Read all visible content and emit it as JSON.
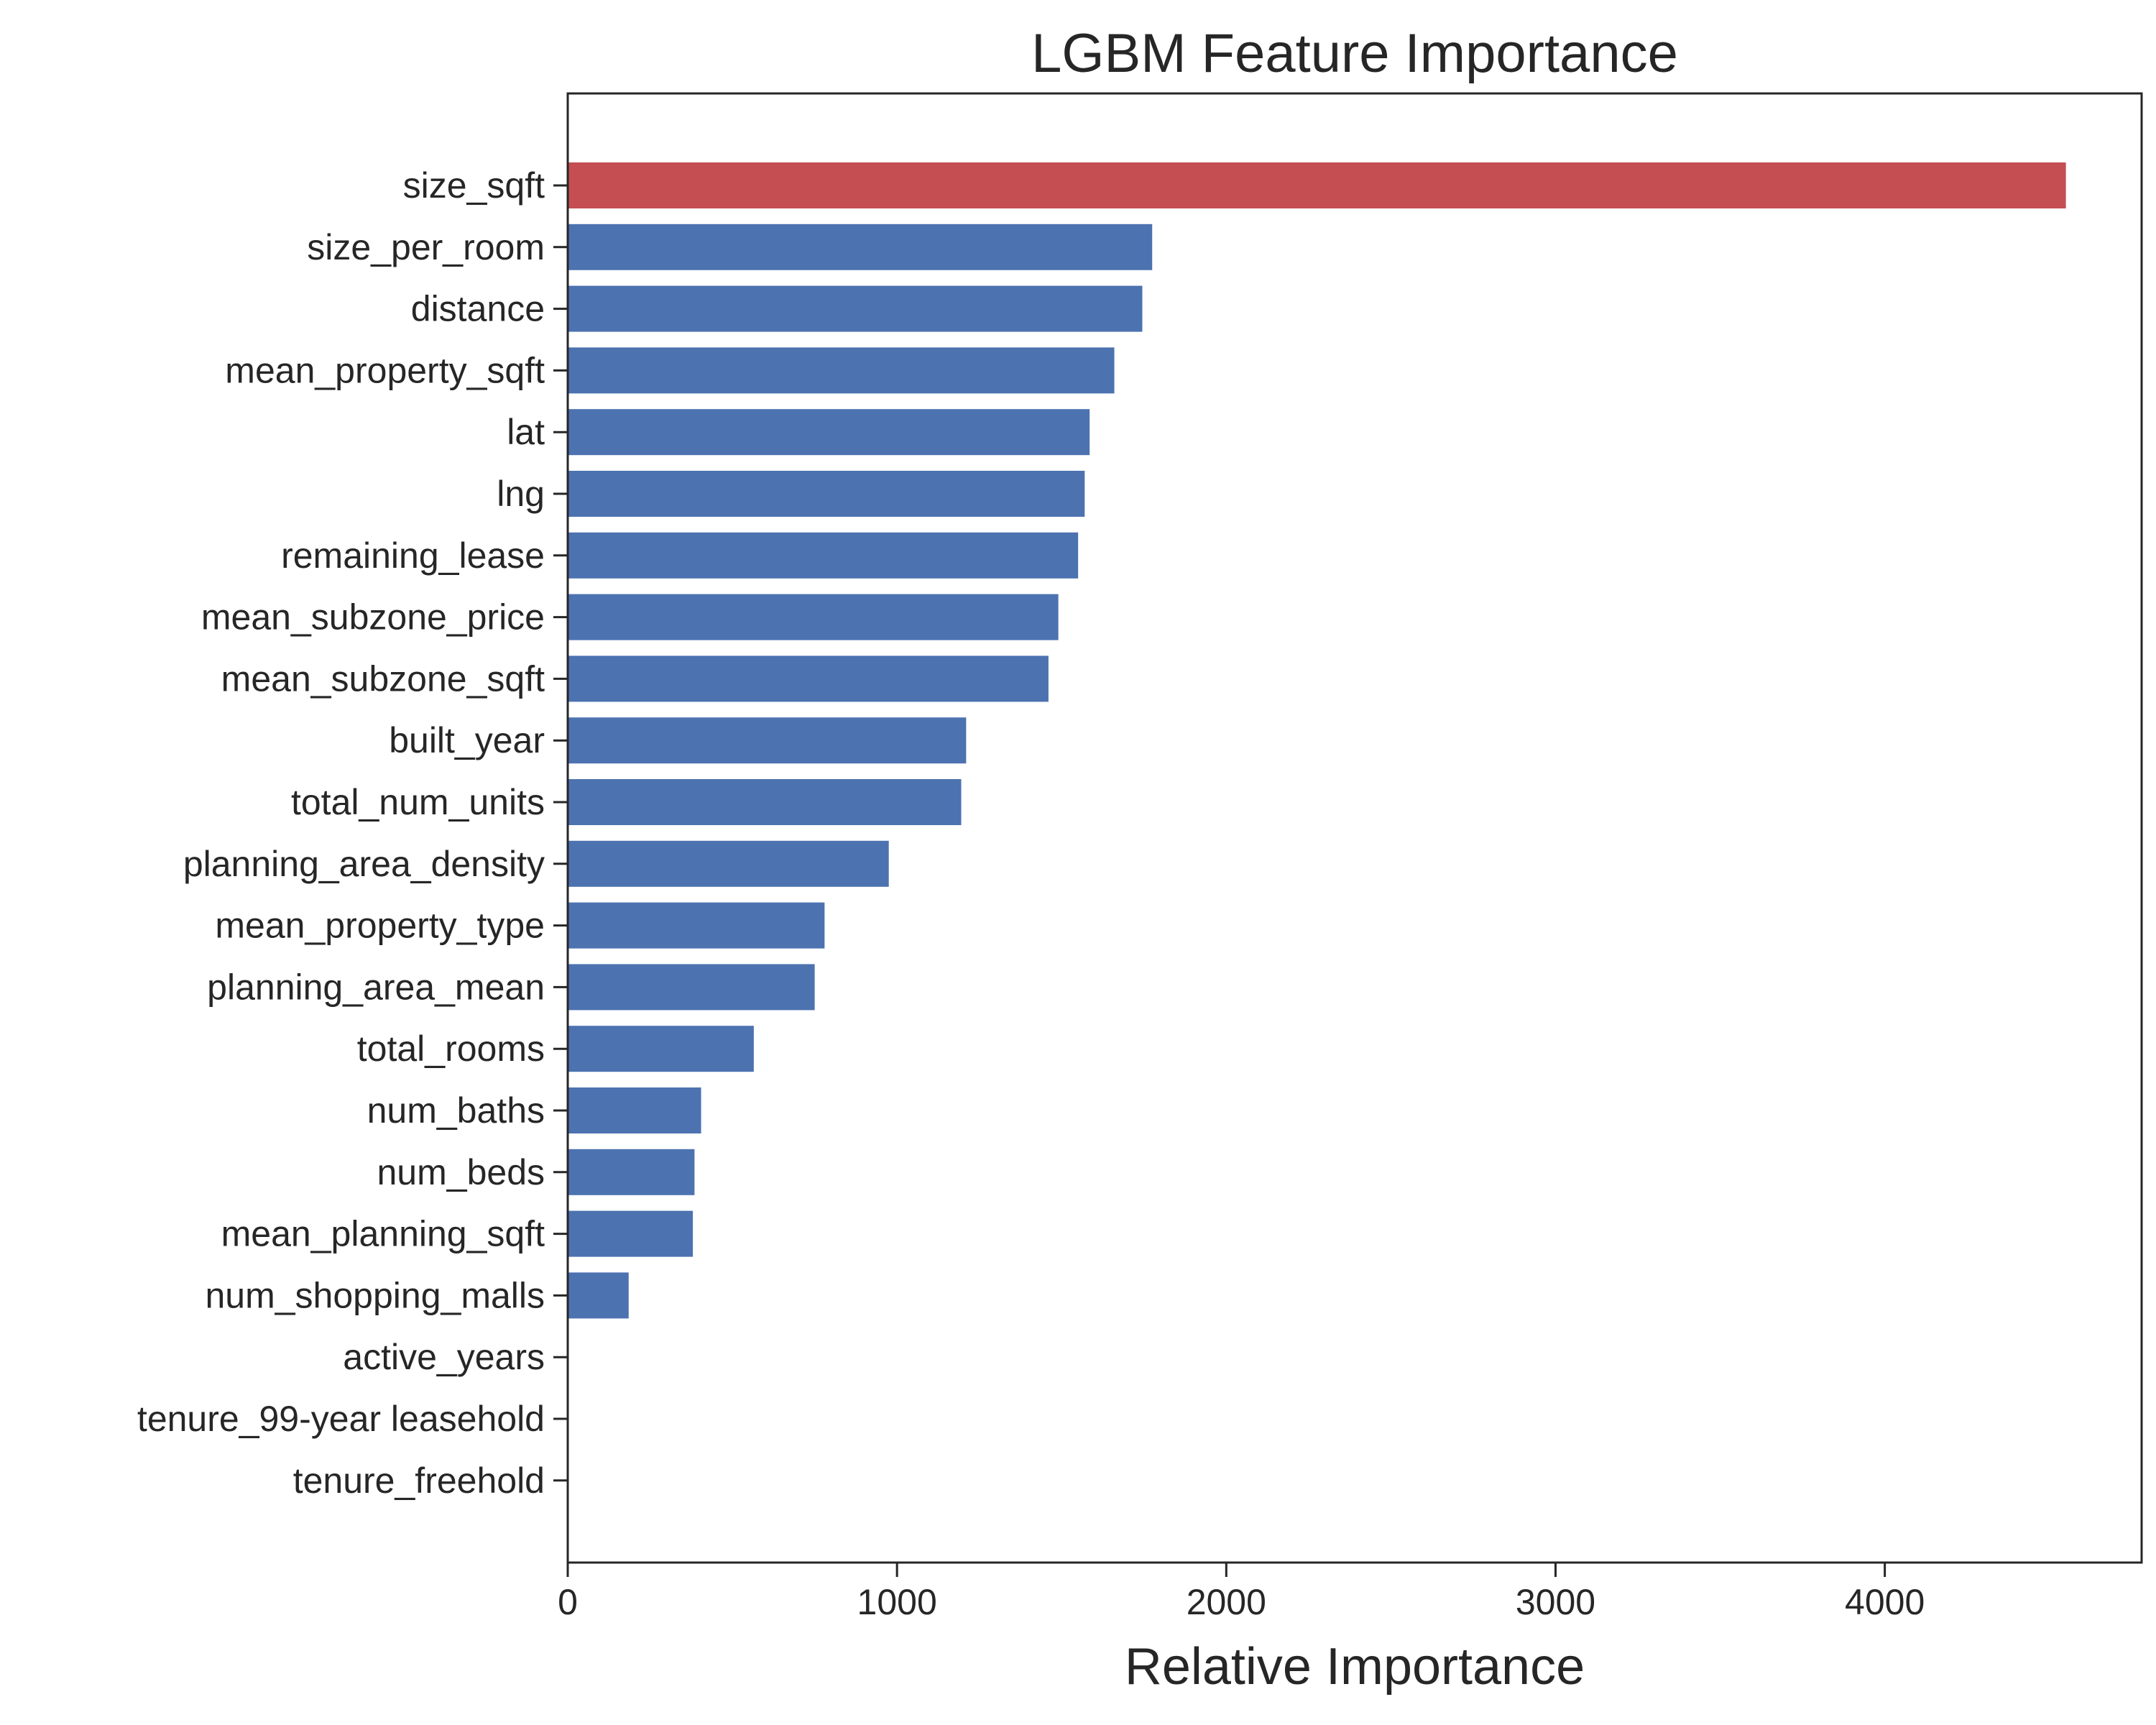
{
  "chart_data": {
    "type": "bar",
    "orientation": "horizontal",
    "title": "LGBM Feature Importance",
    "xlabel": "Relative Importance",
    "ylabel": "",
    "xlim": [
      0,
      4780
    ],
    "xticks": [
      0,
      1000,
      2000,
      3000,
      4000
    ],
    "xtick_labels": [
      "0",
      "1000",
      "2000",
      "3000",
      "4000"
    ],
    "grid": false,
    "legend": "none",
    "colors": {
      "highlight": "#c44e52",
      "default": "#4c72b0",
      "axis": "#262626",
      "background": "#ffffff"
    },
    "highlight_index": 0,
    "categories": [
      "size_sqft",
      "size_per_room",
      "distance",
      "mean_property_sqft",
      "lat",
      "lng",
      "remaining_lease",
      "mean_subzone_price",
      "mean_subzone_sqft",
      "built_year",
      "total_num_units",
      "planning_area_density",
      "mean_property_type",
      "planning_area_mean",
      "total_rooms",
      "num_baths",
      "num_beds",
      "mean_planning_sqft",
      "num_shopping_malls",
      "active_years",
      "tenure_99-year leasehold",
      "tenure_freehold"
    ],
    "values": [
      4550,
      1775,
      1745,
      1660,
      1585,
      1570,
      1550,
      1490,
      1460,
      1210,
      1195,
      975,
      780,
      750,
      565,
      405,
      385,
      380,
      185,
      0,
      0,
      0
    ]
  }
}
